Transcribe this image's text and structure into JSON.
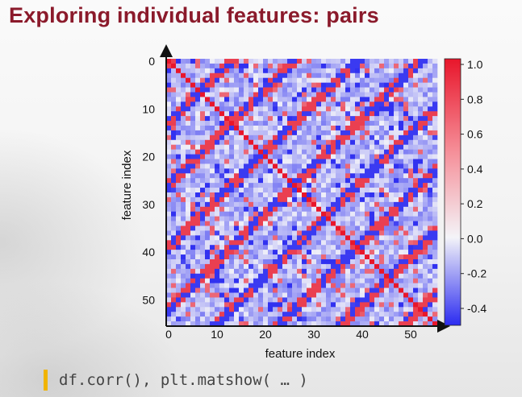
{
  "slide": {
    "title": "Exploring individual features: pairs"
  },
  "code": {
    "text": "df.corr(), plt.matshow( … )"
  },
  "colors": {
    "title": "#8b1a2b",
    "code_bar": "#f0b400",
    "cmap_low": "#2b2bf0",
    "cmap_mid": "#f4f4f8",
    "cmap_high": "#e8162b"
  },
  "chart_data": {
    "type": "heatmap",
    "title": "",
    "xlabel": "feature index",
    "ylabel": "feature index",
    "n": 56,
    "xticks": [
      0,
      10,
      20,
      30,
      40,
      50
    ],
    "yticks": [
      0,
      10,
      20,
      30,
      40,
      50
    ],
    "colorbar": {
      "ticks": [
        "1.0",
        "0.8",
        "0.6",
        "0.4",
        "0.2",
        "0.0",
        "-0.2",
        "-0.4"
      ],
      "tick_values": [
        1.0,
        0.8,
        0.6,
        0.4,
        0.2,
        0.0,
        -0.2,
        -0.4
      ],
      "range": [
        -0.5,
        1.0
      ]
    },
    "diagonal": 1.0,
    "pattern": "symmetric correlation matrix with bright red diagonal, anti-diagonal red/blue X streaks repeating with period 13"
  }
}
